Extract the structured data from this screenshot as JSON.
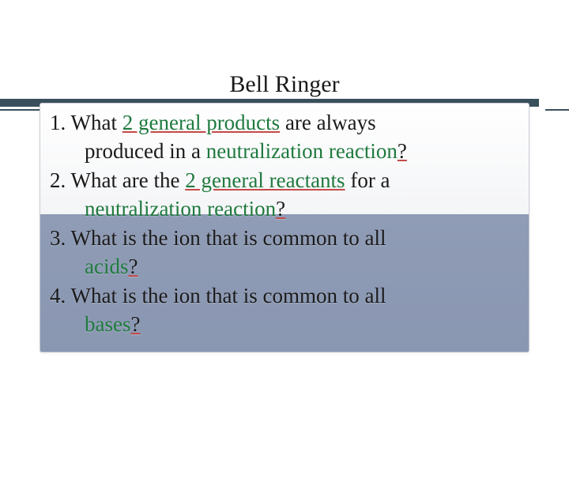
{
  "title": "Bell Ringer",
  "colors": {
    "border": "#3a4f5c",
    "box_gradient_top": "#ffffff",
    "box_gradient_bottom": "#8a97b2",
    "highlight_green": "#1f7a3e",
    "underline_red": "#c44a4a",
    "text": "#1a1a1a"
  },
  "typography": {
    "title_family": "Palatino Linotype, Georgia, serif",
    "title_fontsize": 30,
    "body_family": "Palatino Linotype, Georgia, serif",
    "body_fontsize": 27
  },
  "questions": [
    {
      "num": "1.",
      "parts": [
        {
          "text": "What ",
          "cls": ""
        },
        {
          "text": "2 general products",
          "cls": "hl-u"
        },
        {
          "text": " are always",
          "cls": ""
        }
      ],
      "cont": [
        {
          "text": "produced in a ",
          "cls": ""
        },
        {
          "text": "neutralization reaction",
          "cls": "hl"
        },
        {
          "text": "?",
          "cls": "dark err-u"
        }
      ]
    },
    {
      "num": "2.",
      "parts": [
        {
          "text": "What are the ",
          "cls": ""
        },
        {
          "text": "2 general reactants",
          "cls": "hl-u"
        },
        {
          "text": " for a",
          "cls": ""
        }
      ],
      "cont": [
        {
          "text": "neutralization reaction",
          "cls": "hl"
        },
        {
          "text": "?",
          "cls": "dark err-u"
        }
      ]
    },
    {
      "num": "3.",
      "parts": [
        {
          "text": "What is the ion that is common to all",
          "cls": ""
        }
      ],
      "cont": [
        {
          "text": "acids",
          "cls": "hl"
        },
        {
          "text": "?",
          "cls": "dark err-u"
        }
      ]
    },
    {
      "num": "4.",
      "parts": [
        {
          "text": "What is the ion that is common to all",
          "cls": ""
        }
      ],
      "cont": [
        {
          "text": "bases",
          "cls": "hl"
        },
        {
          "text": "?",
          "cls": "dark err-u"
        }
      ]
    }
  ]
}
